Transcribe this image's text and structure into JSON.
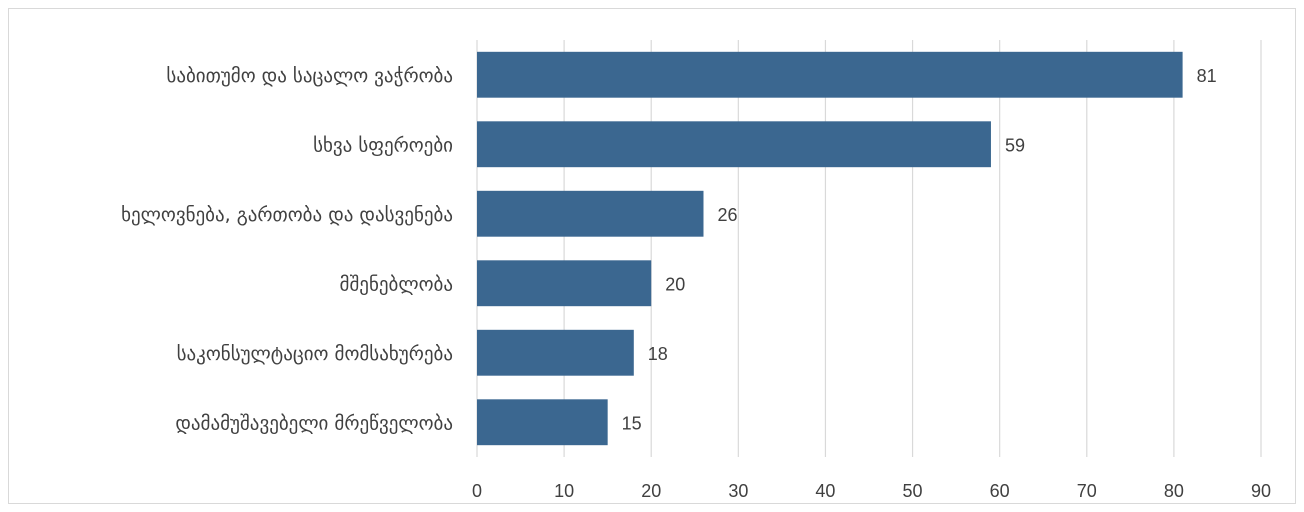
{
  "chart_data": {
    "type": "bar",
    "orientation": "horizontal",
    "title": "",
    "xlabel": "",
    "ylabel": "",
    "categories": [
      "საბითუმო და საცალო ვაჭრობა",
      "სხვა სფეროები",
      "ხელოვნება, გართობა და დასვენება",
      "მშენებლობა",
      "საკონსულტაციო მომსახურება",
      "დამამუშავებელი მრეწველობა"
    ],
    "values": [
      81,
      59,
      26,
      20,
      18,
      15
    ],
    "xlim": [
      0,
      90
    ],
    "xticks": [
      0,
      10,
      20,
      30,
      40,
      50,
      60,
      70,
      80,
      90
    ],
    "grid": "vertical",
    "legend": "none",
    "data_labels": true,
    "colors": {
      "bar": "#3b6790",
      "grid": "#d9d9d9",
      "text": "#404040",
      "border": "#d9d9d9"
    }
  }
}
